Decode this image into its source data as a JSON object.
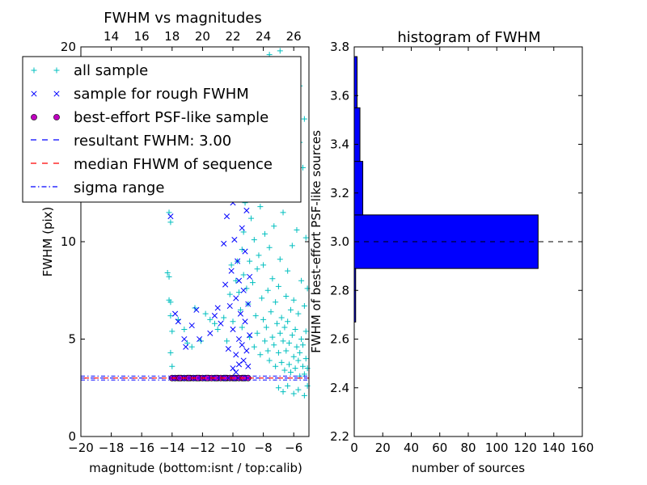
{
  "chart_data": [
    {
      "type": "scatter",
      "title": "FWHM vs magnitudes",
      "xlabel": "magnitude (bottom:isnt / top:calib)",
      "ylabel": "FWHM (pix)",
      "xlim": [
        -20,
        -5
      ],
      "ylim": [
        0,
        20
      ],
      "x_ticks": [
        -20,
        -18,
        -16,
        -14,
        -12,
        -10,
        -8,
        -6
      ],
      "x_tick_labels": [
        "−20",
        "−18",
        "−16",
        "−14",
        "−12",
        "−10",
        "−8",
        "−6"
      ],
      "y_ticks": [
        0,
        5,
        10,
        20
      ],
      "y_tick_labels": [
        "0",
        "5",
        "10",
        "20"
      ],
      "top_axis": {
        "ticks": [
          14,
          16,
          18,
          20,
          22,
          24,
          26
        ],
        "tick_labels": [
          "14",
          "16",
          "18",
          "20",
          "22",
          "24",
          "26"
        ],
        "offset": 32
      },
      "legend_position": "upper-left",
      "series": [
        {
          "name": "all sample",
          "marker": "+",
          "color": "#00bfbf"
        },
        {
          "name": "sample for rough FWHM",
          "marker": "x",
          "color": "#0000ff"
        },
        {
          "name": "best-effort PSF-like sample",
          "marker": "o",
          "color": "#bf00bf"
        },
        {
          "name": "resultant FWHM: 3.00",
          "style": "dashed",
          "color": "#0000ff",
          "y": 3.0
        },
        {
          "name": "median FHWM of sequence",
          "style": "dashed",
          "color": "#ff0000",
          "y": 3.0
        },
        {
          "name": "sigma range",
          "style": "dashdot",
          "color": "#0000ff",
          "y": [
            2.9,
            3.1
          ]
        }
      ],
      "points": {
        "all_sample": [
          [
            -14.3,
            8.4
          ],
          [
            -14.2,
            8.2
          ],
          [
            -14.2,
            7.0
          ],
          [
            -14.1,
            6.9
          ],
          [
            -14.1,
            6.2
          ],
          [
            -14.0,
            5.4
          ],
          [
            -14.1,
            4.3
          ],
          [
            -14.0,
            3.6
          ],
          [
            -14.2,
            11.5
          ],
          [
            -14.1,
            11.0
          ],
          [
            -13.6,
            6.0
          ],
          [
            -13.2,
            5.5
          ],
          [
            -13.0,
            4.8
          ],
          [
            -12.7,
            4.6
          ],
          [
            -12.5,
            6.6
          ],
          [
            -12.1,
            4.9
          ],
          [
            -11.8,
            6.3
          ],
          [
            -11.5,
            6.0
          ],
          [
            -11.2,
            5.8
          ],
          [
            -11.0,
            5.5
          ],
          [
            -10.6,
            6.1
          ],
          [
            -10.4,
            4.9
          ],
          [
            -10.2,
            7.3
          ],
          [
            -10.1,
            8.8
          ],
          [
            -10.0,
            5.9
          ],
          [
            -9.8,
            8.0
          ],
          [
            -9.7,
            9.0
          ],
          [
            -9.6,
            7.4
          ],
          [
            -9.5,
            6.5
          ],
          [
            -9.4,
            5.6
          ],
          [
            -9.4,
            9.6
          ],
          [
            -9.3,
            10.5
          ],
          [
            -9.3,
            8.3
          ],
          [
            -9.2,
            12.0
          ],
          [
            -9.1,
            7.6
          ],
          [
            -9.0,
            13.5
          ],
          [
            -9.0,
            6.8
          ],
          [
            -8.9,
            5.1
          ],
          [
            -8.9,
            9.0
          ],
          [
            -8.8,
            11.2
          ],
          [
            -8.8,
            14.5
          ],
          [
            -8.7,
            7.9
          ],
          [
            -8.6,
            4.6
          ],
          [
            -8.6,
            10.1
          ],
          [
            -8.5,
            6.2
          ],
          [
            -8.5,
            12.8
          ],
          [
            -8.4,
            8.6
          ],
          [
            -8.4,
            5.3
          ],
          [
            -8.3,
            9.3
          ],
          [
            -8.3,
            15.6
          ],
          [
            -8.2,
            4.2
          ],
          [
            -8.2,
            11.8
          ],
          [
            -8.1,
            7.1
          ],
          [
            -8.1,
            13.0
          ],
          [
            -8.0,
            6.0
          ],
          [
            -8.0,
            8.8
          ],
          [
            -7.9,
            4.9
          ],
          [
            -7.9,
            10.4
          ],
          [
            -7.8,
            5.6
          ],
          [
            -7.8,
            16.8
          ],
          [
            -7.7,
            7.5
          ],
          [
            -7.7,
            4.4
          ],
          [
            -7.6,
            9.7
          ],
          [
            -7.6,
            3.9
          ],
          [
            -7.5,
            6.4
          ],
          [
            -7.5,
            12.2
          ],
          [
            -7.4,
            5.1
          ],
          [
            -7.4,
            8.1
          ],
          [
            -7.3,
            4.7
          ],
          [
            -7.3,
            10.8
          ],
          [
            -7.2,
            6.9
          ],
          [
            -7.2,
            3.6
          ],
          [
            -7.1,
            5.8
          ],
          [
            -7.1,
            14.0
          ],
          [
            -7.0,
            4.3
          ],
          [
            -7.0,
            7.7
          ],
          [
            -6.9,
            5.3
          ],
          [
            -6.9,
            9.1
          ],
          [
            -6.8,
            3.8
          ],
          [
            -6.8,
            6.1
          ],
          [
            -6.7,
            4.9
          ],
          [
            -6.7,
            11.5
          ],
          [
            -6.6,
            5.6
          ],
          [
            -6.6,
            3.4
          ],
          [
            -6.5,
            7.2
          ],
          [
            -6.5,
            4.4
          ],
          [
            -6.4,
            5.9
          ],
          [
            -6.4,
            8.5
          ],
          [
            -6.3,
            3.7
          ],
          [
            -6.3,
            4.8
          ],
          [
            -6.2,
            6.5
          ],
          [
            -6.2,
            3.3
          ],
          [
            -6.1,
            5.2
          ],
          [
            -6.1,
            9.8
          ],
          [
            -6.0,
            4.1
          ],
          [
            -6.0,
            7.0
          ],
          [
            -5.9,
            3.5
          ],
          [
            -5.9,
            5.5
          ],
          [
            -5.8,
            4.6
          ],
          [
            -5.8,
            12.8
          ],
          [
            -5.7,
            3.9
          ],
          [
            -5.7,
            6.3
          ],
          [
            -5.6,
            4.3
          ],
          [
            -5.6,
            3.1
          ],
          [
            -5.5,
            5.0
          ],
          [
            -5.5,
            8.0
          ],
          [
            -5.4,
            3.6
          ],
          [
            -5.4,
            4.7
          ],
          [
            -5.3,
            6.7
          ],
          [
            -5.3,
            3.2
          ],
          [
            -5.2,
            4.0
          ],
          [
            -5.2,
            5.4
          ],
          [
            -5.1,
            3.5
          ],
          [
            -5.1,
            7.6
          ],
          [
            -8.6,
            18.5
          ],
          [
            -8.2,
            19.2
          ],
          [
            -7.6,
            19.6
          ],
          [
            -7.2,
            18.9
          ],
          [
            -6.9,
            19.8
          ],
          [
            -6.3,
            19.1
          ],
          [
            -8.4,
            17.5
          ],
          [
            -7.9,
            18.2
          ],
          [
            -6.6,
            16.9
          ],
          [
            -6.0,
            17.6
          ],
          [
            -5.6,
            18.0
          ],
          [
            -5.3,
            16.3
          ],
          [
            -7.0,
            2.5
          ],
          [
            -6.7,
            2.3
          ],
          [
            -6.4,
            2.6
          ],
          [
            -6.0,
            2.2
          ],
          [
            -5.7,
            2.4
          ],
          [
            -5.3,
            2.1
          ],
          [
            -5.1,
            2.6
          ],
          [
            -5.2,
            10.2
          ],
          [
            -5.4,
            13.8
          ],
          [
            -5.6,
            15.1
          ],
          [
            -5.8,
            10.6
          ],
          [
            -6.5,
            14.8
          ]
        ],
        "rough_sample": [
          [
            -14.1,
            11.3
          ],
          [
            -13.8,
            6.3
          ],
          [
            -13.6,
            5.9
          ],
          [
            -13.1,
            4.6
          ],
          [
            -12.2,
            5.0
          ],
          [
            -11.7,
            12.4
          ],
          [
            -11.5,
            13.5
          ],
          [
            -11.2,
            6.2
          ],
          [
            -11.0,
            6.6
          ],
          [
            -10.8,
            5.8
          ],
          [
            -10.6,
            9.9
          ],
          [
            -10.5,
            7.8
          ],
          [
            -10.4,
            11.3
          ],
          [
            -10.3,
            4.5
          ],
          [
            -10.2,
            6.7
          ],
          [
            -10.1,
            8.5
          ],
          [
            -10.0,
            12.0
          ],
          [
            -10.0,
            5.5
          ],
          [
            -9.9,
            10.1
          ],
          [
            -9.8,
            4.2
          ],
          [
            -9.8,
            7.1
          ],
          [
            -9.7,
            13.0
          ],
          [
            -9.7,
            9.0
          ],
          [
            -9.6,
            5.0
          ],
          [
            -9.6,
            8.0
          ],
          [
            -9.5,
            6.3
          ],
          [
            -9.5,
            12.2
          ],
          [
            -9.4,
            4.7
          ],
          [
            -9.4,
            10.7
          ],
          [
            -9.3,
            7.5
          ],
          [
            -9.3,
            3.9
          ],
          [
            -9.2,
            5.9
          ],
          [
            -9.2,
            9.5
          ],
          [
            -9.1,
            4.4
          ],
          [
            -9.1,
            11.6
          ],
          [
            -9.0,
            6.8
          ],
          [
            -9.0,
            3.6
          ],
          [
            -8.9,
            8.2
          ],
          [
            -8.9,
            5.2
          ],
          [
            -10.0,
            3.5
          ],
          [
            -9.8,
            3.3
          ],
          [
            -9.6,
            3.7
          ],
          [
            -11.5,
            5.3
          ],
          [
            -12.4,
            6.5
          ],
          [
            -12.7,
            5.7
          ],
          [
            -13.2,
            5.0
          ]
        ],
        "psf_sample": [
          [
            -14.0,
            3.0
          ],
          [
            -13.8,
            3.0
          ],
          [
            -13.6,
            3.0
          ],
          [
            -13.4,
            3.0
          ],
          [
            -13.2,
            3.0
          ],
          [
            -13.0,
            3.0
          ],
          [
            -12.8,
            3.0
          ],
          [
            -12.6,
            3.0
          ],
          [
            -12.4,
            3.0
          ],
          [
            -12.2,
            3.0
          ],
          [
            -12.0,
            3.0
          ],
          [
            -11.8,
            3.0
          ],
          [
            -11.6,
            3.0
          ],
          [
            -11.4,
            3.0
          ],
          [
            -11.2,
            3.0
          ],
          [
            -11.0,
            3.0
          ],
          [
            -10.8,
            3.0
          ],
          [
            -10.6,
            3.0
          ],
          [
            -10.4,
            3.0
          ],
          [
            -10.2,
            3.0
          ],
          [
            -10.0,
            3.0
          ],
          [
            -9.8,
            3.0
          ],
          [
            -9.6,
            3.0
          ],
          [
            -9.4,
            3.0
          ],
          [
            -9.2,
            3.0
          ],
          [
            -9.0,
            3.0
          ],
          [
            -13.5,
            3.0
          ],
          [
            -12.9,
            3.0
          ],
          [
            -12.3,
            3.0
          ],
          [
            -11.7,
            3.0
          ],
          [
            -11.1,
            3.0
          ],
          [
            -10.5,
            3.0
          ],
          [
            -9.9,
            3.0
          ],
          [
            -9.3,
            3.0
          ]
        ]
      },
      "legend_entries": [
        "all sample",
        "sample for rough FWHM",
        "best-effort PSF-like sample",
        "resultant FWHM: 3.00",
        "median FHWM of sequence",
        "sigma range"
      ]
    },
    {
      "type": "bar",
      "orientation": "horizontal",
      "title": "histogram of FWHM",
      "xlabel": "number of sources",
      "ylabel": "FWHM of best-effort PSF-like sources",
      "xlim": [
        0,
        160
      ],
      "ylim": [
        2.2,
        3.8
      ],
      "x_ticks": [
        0,
        20,
        40,
        60,
        80,
        100,
        120,
        140,
        160
      ],
      "x_tick_labels": [
        "0",
        "20",
        "40",
        "60",
        "80",
        "100",
        "120",
        "140",
        "160"
      ],
      "y_ticks": [
        2.2,
        2.4,
        2.6,
        2.8,
        3.0,
        3.2,
        3.4,
        3.6,
        3.8
      ],
      "y_tick_labels": [
        "2.2",
        "2.4",
        "2.6",
        "2.8",
        "3.0",
        "3.2",
        "3.4",
        "3.6",
        "3.8"
      ],
      "bar_color": "#0000ff",
      "bins": [
        {
          "from": 2.67,
          "to": 2.89,
          "count": 1
        },
        {
          "from": 2.89,
          "to": 3.11,
          "count": 129
        },
        {
          "from": 3.11,
          "to": 3.33,
          "count": 6
        },
        {
          "from": 3.33,
          "to": 3.55,
          "count": 4
        },
        {
          "from": 3.55,
          "to": 3.76,
          "count": 2
        }
      ],
      "reference_line": {
        "y": 3.0,
        "style": "dashed",
        "color": "#000000"
      }
    }
  ]
}
